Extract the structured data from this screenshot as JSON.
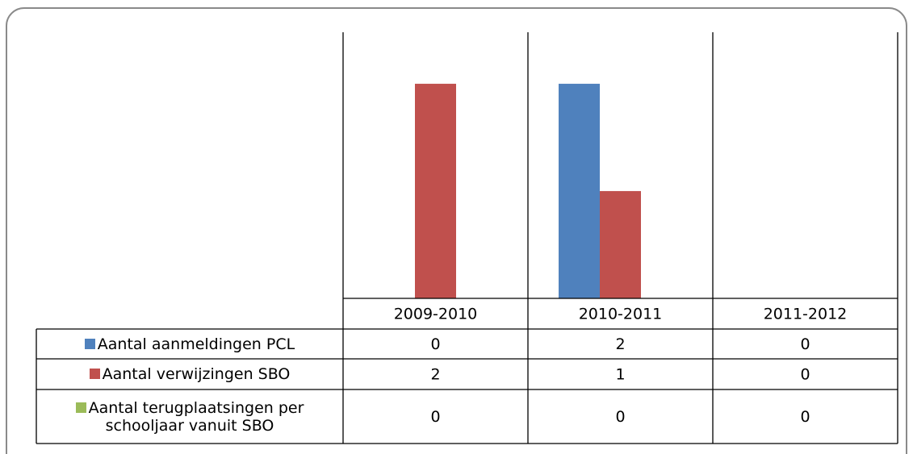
{
  "chart_data": {
    "type": "bar",
    "categories": [
      "2009-2010",
      "2010-2011",
      "2011-2012"
    ],
    "series": [
      {
        "name": "Aantal aanmeldingen PCL",
        "color": "#4f81bd",
        "values": [
          0,
          2,
          0
        ]
      },
      {
        "name": "Aantal verwijzingen SBO",
        "color": "#c0504d",
        "values": [
          2,
          1,
          0
        ]
      },
      {
        "name": "Aantal terugplaatsingen per schooljaar vanuit SBO",
        "color": "#9bbb59",
        "values": [
          0,
          0,
          0
        ]
      }
    ],
    "ylim": [
      0,
      2.48
    ]
  }
}
